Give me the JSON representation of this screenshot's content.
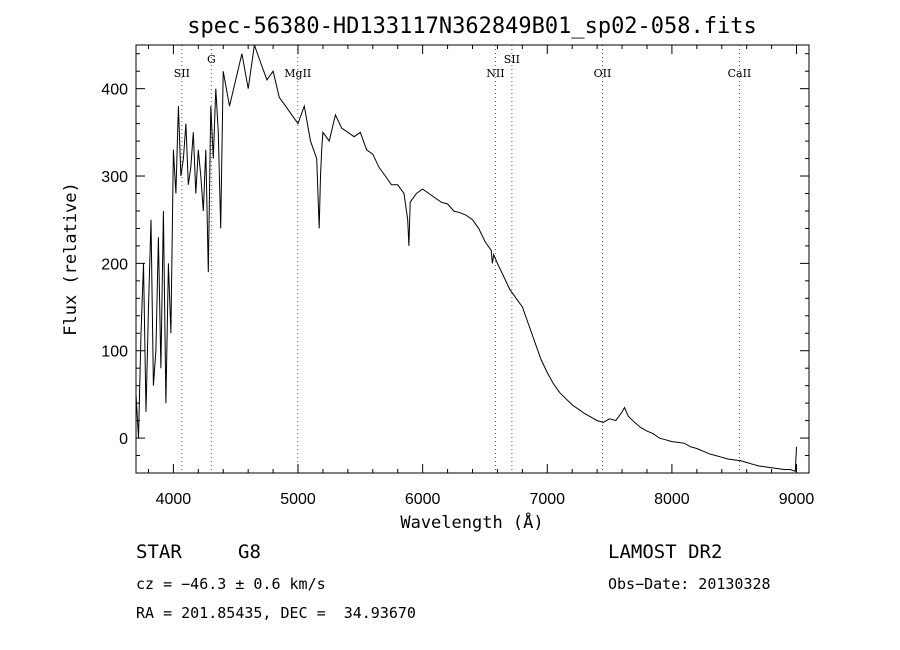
{
  "chart_data": {
    "type": "line",
    "title": "spec-56380-HD133117N362849B01_sp02-058.fits",
    "xlabel": "Wavelength (Å)",
    "ylabel": "Flux (relative)",
    "xlim": [
      3700,
      9100
    ],
    "ylim": [
      -40,
      450
    ],
    "xticks": [
      4000,
      5000,
      6000,
      7000,
      8000,
      9000
    ],
    "yticks": [
      0,
      100,
      200,
      300,
      400
    ],
    "grid": false,
    "series": [
      {
        "x": [
          3700,
          3720,
          3740,
          3760,
          3780,
          3800,
          3820,
          3840,
          3860,
          3880,
          3900,
          3920,
          3940,
          3960,
          3980,
          4000,
          4020,
          4040,
          4060,
          4080,
          4100,
          4120,
          4140,
          4160,
          4180,
          4200,
          4220,
          4240,
          4260,
          4280,
          4300,
          4320,
          4340,
          4360,
          4380,
          4400,
          4450,
          4500,
          4550,
          4600,
          4650,
          4700,
          4750,
          4800,
          4850,
          4900,
          4950,
          5000,
          5050,
          5100,
          5150,
          5170,
          5180,
          5190,
          5200,
          5250,
          5300,
          5350,
          5400,
          5450,
          5500,
          5550,
          5600,
          5650,
          5700,
          5750,
          5800,
          5850,
          5880,
          5890,
          5900,
          5950,
          6000,
          6050,
          6100,
          6150,
          6200,
          6250,
          6300,
          6350,
          6400,
          6450,
          6500,
          6550,
          6560,
          6570,
          6600,
          6650,
          6700,
          6750,
          6800,
          6850,
          6900,
          6950,
          7000,
          7050,
          7100,
          7150,
          7200,
          7250,
          7300,
          7350,
          7400,
          7450,
          7500,
          7550,
          7600,
          7620,
          7650,
          7700,
          7750,
          7800,
          7850,
          7900,
          7950,
          8000,
          8050,
          8100,
          8150,
          8200,
          8250,
          8300,
          8350,
          8400,
          8450,
          8500,
          8550,
          8600,
          8650,
          8700,
          8750,
          8800,
          8850,
          8900,
          8950,
          8990,
          9000
        ],
        "y": [
          50,
          0,
          120,
          200,
          30,
          150,
          250,
          60,
          100,
          230,
          80,
          260,
          40,
          200,
          120,
          330,
          280,
          380,
          300,
          320,
          360,
          290,
          310,
          350,
          280,
          330,
          300,
          260,
          330,
          190,
          380,
          320,
          400,
          350,
          240,
          420,
          380,
          410,
          440,
          400,
          450,
          430,
          410,
          420,
          390,
          380,
          370,
          360,
          380,
          340,
          320,
          240,
          300,
          330,
          350,
          340,
          370,
          355,
          350,
          345,
          350,
          330,
          325,
          310,
          300,
          290,
          290,
          280,
          250,
          220,
          270,
          280,
          285,
          280,
          275,
          270,
          268,
          260,
          258,
          255,
          250,
          240,
          225,
          215,
          200,
          210,
          200,
          185,
          170,
          160,
          150,
          130,
          110,
          90,
          75,
          62,
          52,
          45,
          38,
          33,
          28,
          24,
          20,
          18,
          22,
          20,
          30,
          35,
          25,
          18,
          12,
          8,
          5,
          0,
          -2,
          -4,
          -5,
          -6,
          -10,
          -12,
          -15,
          -18,
          -20,
          -22,
          -24,
          -25,
          -26,
          -28,
          -30,
          -32,
          -33,
          -34,
          -35,
          -36,
          -36,
          -38,
          -10
        ]
      }
    ],
    "lines": [
      {
        "label": "SII",
        "x": 4068
      },
      {
        "label": "G",
        "x": 4305
      },
      {
        "label": "MgII",
        "x": 4998
      },
      {
        "label": "NII",
        "x": 6584
      },
      {
        "label": "SII",
        "x": 6716
      },
      {
        "label": "OII",
        "x": 7443
      },
      {
        "label": "CaII",
        "x": 8542
      }
    ]
  },
  "info": {
    "class_label": "STAR",
    "subclass": "G8",
    "survey": "LAMOST DR2",
    "cz": "cz = −46.3 ± 0.6 km/s",
    "obs_date": "Obs−Date: 20130328",
    "radec": "RA = 201.85435, DEC =  34.93670"
  }
}
